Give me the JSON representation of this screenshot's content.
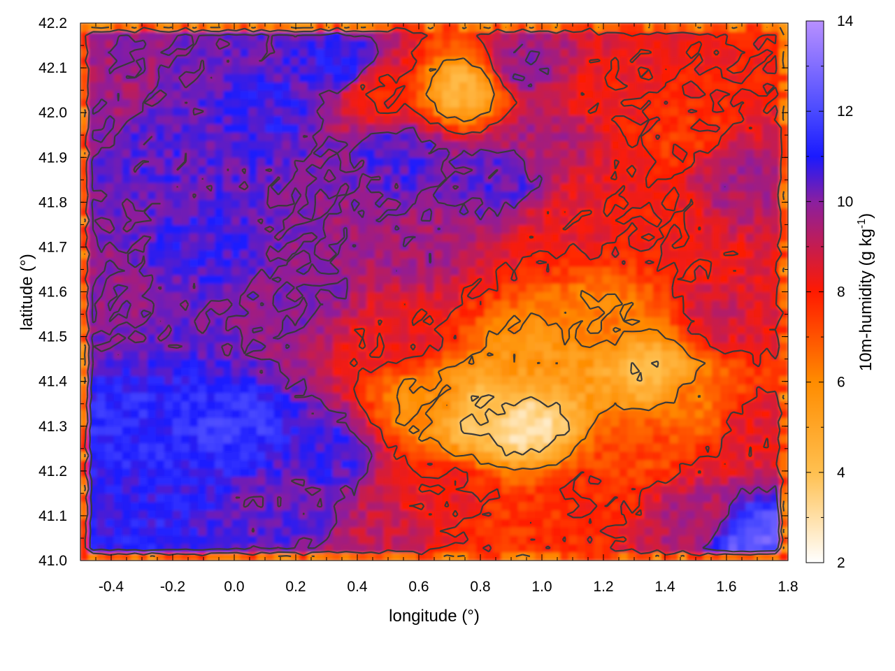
{
  "chart_data": {
    "type": "heatmap",
    "title": "",
    "xlabel": "longitude (°)",
    "ylabel": "latitude (°)",
    "colorbar_label": "10m-humidity (g kg-1)",
    "colorbar_label_parts": {
      "base": "10m-humidity (g kg",
      "sup": "-1",
      "tail": ")"
    },
    "xlim": [
      -0.5,
      1.8
    ],
    "ylim": [
      41.0,
      42.2
    ],
    "zlim": [
      2,
      14
    ],
    "x_ticks": [
      -0.4,
      -0.2,
      0.0,
      0.2,
      0.4,
      0.6,
      0.8,
      1.0,
      1.2,
      1.4,
      1.6,
      1.8
    ],
    "x_tick_labels": [
      "-0.4",
      "-0.2",
      "0.0",
      "0.2",
      "0.4",
      "0.6",
      "0.8",
      "1.0",
      "1.2",
      "1.4",
      "1.6",
      "1.8"
    ],
    "y_ticks": [
      41.0,
      41.1,
      41.2,
      41.3,
      41.4,
      41.5,
      41.6,
      41.7,
      41.8,
      41.9,
      42.0,
      42.1,
      42.2
    ],
    "y_tick_labels": [
      "41.0",
      "41.1",
      "41.2",
      "41.3",
      "41.4",
      "41.5",
      "41.6",
      "41.7",
      "41.8",
      "41.9",
      "42.0",
      "42.1",
      "42.2"
    ],
    "z_ticks": [
      2,
      4,
      6,
      8,
      10,
      12,
      14
    ],
    "z_tick_labels": [
      "2",
      "4",
      "6",
      "8",
      "10",
      "12",
      "14"
    ],
    "colormap": [
      {
        "value": 2,
        "color": "#ffffff"
      },
      {
        "value": 4,
        "color": "#ffc050"
      },
      {
        "value": 6,
        "color": "#ff8c00"
      },
      {
        "value": 8,
        "color": "#ff1a00"
      },
      {
        "value": 10,
        "color": "#8a1fa0"
      },
      {
        "value": 11,
        "color": "#1a1aff"
      },
      {
        "value": 12,
        "color": "#4a4aff"
      },
      {
        "value": 14,
        "color": "#b890ff"
      }
    ],
    "field_anchors": [
      {
        "lon": -0.4,
        "lat": 42.05,
        "humidity": 9.6
      },
      {
        "lon": -0.2,
        "lat": 41.95,
        "humidity": 10.5
      },
      {
        "lon": 0.1,
        "lat": 42.0,
        "humidity": 10.8
      },
      {
        "lon": 0.35,
        "lat": 42.1,
        "humidity": 11.0
      },
      {
        "lon": 0.55,
        "lat": 41.9,
        "humidity": 10.6
      },
      {
        "lon": -0.45,
        "lat": 41.6,
        "humidity": 9.8
      },
      {
        "lon": -0.1,
        "lat": 41.7,
        "humidity": 10.7
      },
      {
        "lon": 0.2,
        "lat": 41.6,
        "humidity": 10.0
      },
      {
        "lon": -0.35,
        "lat": 41.3,
        "humidity": 11.3
      },
      {
        "lon": 0.0,
        "lat": 41.3,
        "humidity": 11.6
      },
      {
        "lon": 0.3,
        "lat": 41.25,
        "humidity": 10.8
      },
      {
        "lon": -0.3,
        "lat": 41.1,
        "humidity": 11.0
      },
      {
        "lon": 0.2,
        "lat": 41.1,
        "humidity": 10.4
      },
      {
        "lon": 0.45,
        "lat": 41.05,
        "humidity": 9.0
      },
      {
        "lon": 0.6,
        "lat": 41.7,
        "humidity": 9.6
      },
      {
        "lon": 0.55,
        "lat": 41.5,
        "humidity": 8.3
      },
      {
        "lon": 0.62,
        "lat": 41.35,
        "humidity": 5.8
      },
      {
        "lon": 0.8,
        "lat": 41.32,
        "humidity": 4.0
      },
      {
        "lon": 0.95,
        "lat": 41.3,
        "humidity": 3.0
      },
      {
        "lon": 1.0,
        "lat": 41.45,
        "humidity": 5.5
      },
      {
        "lon": 1.2,
        "lat": 41.55,
        "humidity": 6.2
      },
      {
        "lon": 1.35,
        "lat": 41.42,
        "humidity": 4.3
      },
      {
        "lon": 1.3,
        "lat": 41.25,
        "humidity": 7.2
      },
      {
        "lon": 1.5,
        "lat": 41.35,
        "humidity": 6.5
      },
      {
        "lon": 1.15,
        "lat": 41.15,
        "humidity": 7.8
      },
      {
        "lon": 0.95,
        "lat": 41.1,
        "humidity": 7.6
      },
      {
        "lon": 0.7,
        "lat": 41.15,
        "humidity": 8.2
      },
      {
        "lon": 1.5,
        "lat": 41.1,
        "humidity": 9.3
      },
      {
        "lon": 1.7,
        "lat": 41.05,
        "humidity": 12.5
      },
      {
        "lon": 1.7,
        "lat": 41.3,
        "humidity": 8.4
      },
      {
        "lon": 1.6,
        "lat": 41.55,
        "humidity": 8.8
      },
      {
        "lon": 1.1,
        "lat": 41.75,
        "humidity": 8.3
      },
      {
        "lon": 1.35,
        "lat": 41.75,
        "humidity": 8.0
      },
      {
        "lon": 0.85,
        "lat": 41.85,
        "humidity": 10.5
      },
      {
        "lon": 1.0,
        "lat": 41.95,
        "humidity": 9.4
      },
      {
        "lon": 1.2,
        "lat": 42.05,
        "humidity": 8.2
      },
      {
        "lon": 1.45,
        "lat": 41.95,
        "humidity": 7.6
      },
      {
        "lon": 1.65,
        "lat": 41.85,
        "humidity": 9.5
      },
      {
        "lon": 1.7,
        "lat": 42.1,
        "humidity": 8.0
      },
      {
        "lon": 0.75,
        "lat": 42.05,
        "humidity": 4.5
      },
      {
        "lon": 0.45,
        "lat": 42.05,
        "humidity": 8.0
      },
      {
        "lon": 0.95,
        "lat": 42.1,
        "humidity": 9.8
      }
    ],
    "grid": false,
    "legend": "colorbar-right"
  }
}
